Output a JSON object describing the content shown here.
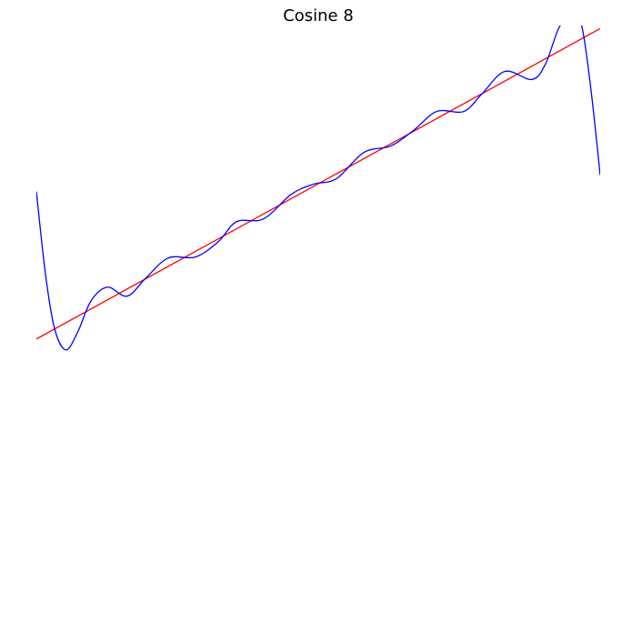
{
  "chart_data": {
    "type": "line",
    "title": "Cosine 8",
    "xlim": [
      0,
      1
    ],
    "ylim": [
      -0.9,
      1.01
    ],
    "grid": false,
    "series": [
      {
        "color": "#ff0000",
        "x": [
          0,
          1
        ],
        "values": [
          0,
          1
        ]
      },
      {
        "color": "#0000ff",
        "x": [
          0,
          0.016,
          0.032,
          0.052,
          0.073,
          0.097,
          0.126,
          0.161,
          0.194,
          0.234,
          0.282,
          0.323,
          0.355,
          0.403,
          0.452,
          0.492,
          0.532,
          0.581,
          0.629,
          0.669,
          0.71,
          0.758,
          0.79,
          0.831,
          0.879,
          0.903,
          0.927,
          0.952,
          0.968,
          0.984,
          1
        ],
        "values": [
          0.475,
          0.211,
          0.035,
          -0.035,
          0.021,
          0.123,
          0.167,
          0.138,
          0.196,
          0.261,
          0.264,
          0.314,
          0.378,
          0.387,
          0.466,
          0.499,
          0.516,
          0.601,
          0.622,
          0.672,
          0.733,
          0.733,
          0.789,
          0.862,
          0.836,
          0.886,
          1.003,
          1.06,
          1.003,
          0.798,
          0.528
        ]
      }
    ]
  }
}
